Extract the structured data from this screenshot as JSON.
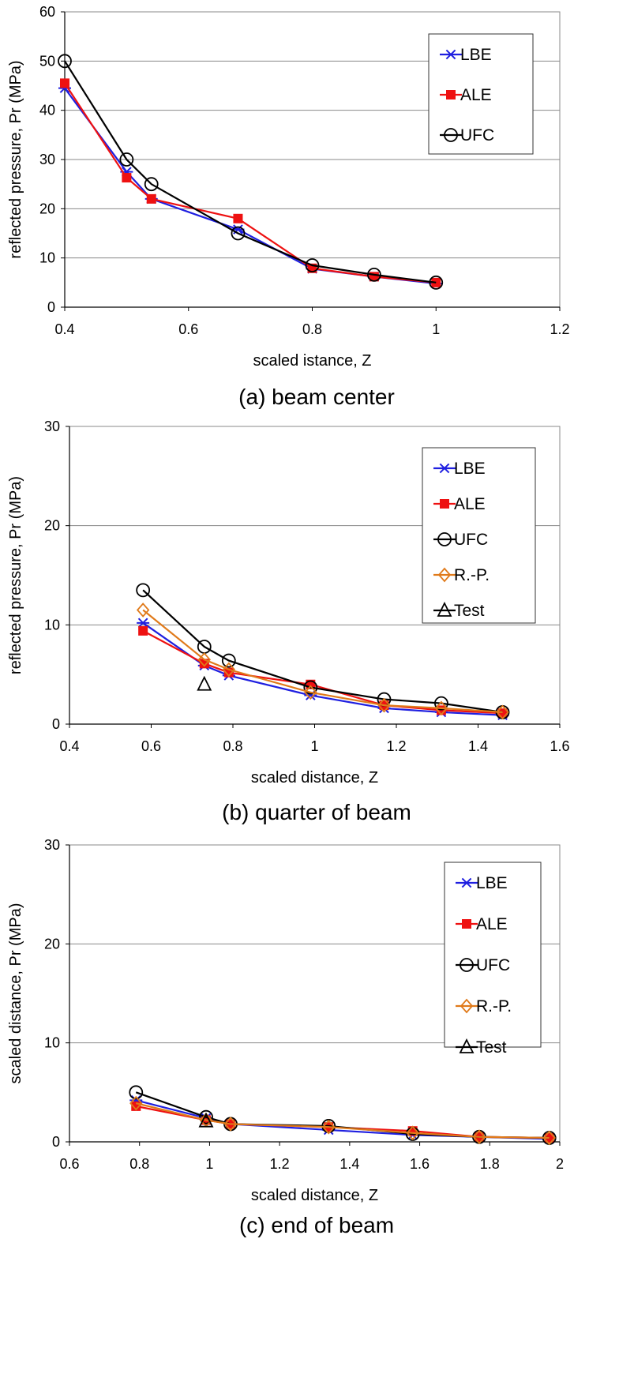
{
  "colors": {
    "LBE": "#1f1fe0",
    "ALE": "#ee1111",
    "UFC": "#000000",
    "RP": "#e07a1a",
    "Test": "#000000",
    "grid": "#888888",
    "axis": "#000000"
  },
  "chart_data": [
    {
      "type": "line",
      "caption": "(a) beam center",
      "xlabel": "scaled istance, Z",
      "ylabel": "reflected pressure, Pr (MPa)",
      "xlim": [
        0.4,
        1.2
      ],
      "ylim": [
        0,
        60
      ],
      "xticks": [
        0.4,
        0.6,
        0.8,
        1.0,
        1.2
      ],
      "xtick_labels": [
        "0.4",
        "0.6",
        "0.8",
        "1",
        "1.2"
      ],
      "yticks": [
        0,
        10,
        20,
        30,
        40,
        50,
        60
      ],
      "ytick_labels": [
        "0",
        "10",
        "20",
        "30",
        "40",
        "50",
        "60"
      ],
      "grid": "horizontal",
      "legend_position": "top-right",
      "series": [
        {
          "name": "LBE",
          "marker": "asterisk",
          "x": [
            0.4,
            0.5,
            0.54,
            0.68,
            0.8,
            0.9,
            1.0
          ],
          "y": [
            44.5,
            27.5,
            22.0,
            15.8,
            7.8,
            6.2,
            4.8
          ]
        },
        {
          "name": "ALE",
          "marker": "square",
          "x": [
            0.4,
            0.5,
            0.54,
            0.68,
            0.8,
            0.9,
            1.0
          ],
          "y": [
            45.5,
            26.3,
            22.0,
            18.0,
            7.9,
            6.2,
            5.0
          ]
        },
        {
          "name": "UFC",
          "marker": "circle",
          "x": [
            0.4,
            0.5,
            0.54,
            0.68,
            0.8,
            0.9,
            1.0
          ],
          "y": [
            50.0,
            30.0,
            25.0,
            15.0,
            8.5,
            6.6,
            5.0
          ]
        }
      ]
    },
    {
      "type": "line",
      "caption": "(b) quarter of beam",
      "xlabel": "scaled distance, Z",
      "ylabel": "reflected pressure, Pr (MPa)",
      "xlim": [
        0.4,
        1.6
      ],
      "ylim": [
        0,
        30
      ],
      "xticks": [
        0.4,
        0.6,
        0.8,
        1.0,
        1.2,
        1.4,
        1.6
      ],
      "xtick_labels": [
        "0.4",
        "0.6",
        "0.8",
        "1",
        "1.2",
        "1.4",
        "1.6"
      ],
      "yticks": [
        0,
        10,
        20,
        30
      ],
      "ytick_labels": [
        "0",
        "10",
        "20",
        "30"
      ],
      "grid": "horizontal",
      "legend_position": "top-right",
      "series": [
        {
          "name": "LBE",
          "marker": "asterisk",
          "x": [
            0.58,
            0.73,
            0.79,
            0.99,
            1.17,
            1.31,
            1.46
          ],
          "y": [
            10.2,
            5.9,
            4.9,
            2.9,
            1.6,
            1.2,
            0.9
          ]
        },
        {
          "name": "ALE",
          "marker": "square",
          "x": [
            0.58,
            0.73,
            0.79,
            0.99,
            1.17,
            1.31,
            1.46
          ],
          "y": [
            9.4,
            6.1,
            5.2,
            4.0,
            1.9,
            1.4,
            1.1
          ]
        },
        {
          "name": "UFC",
          "marker": "circle",
          "x": [
            0.58,
            0.73,
            0.79,
            0.99,
            1.17,
            1.31,
            1.46
          ],
          "y": [
            13.5,
            7.8,
            6.4,
            3.7,
            2.5,
            2.1,
            1.2
          ]
        },
        {
          "name": "R.-P.",
          "marker": "diamond",
          "x": [
            0.58,
            0.73,
            0.79,
            0.99,
            1.17,
            1.31,
            1.46
          ],
          "y": [
            11.5,
            6.5,
            5.5,
            3.2,
            1.9,
            1.6,
            1.2
          ]
        },
        {
          "name": "Test",
          "marker": "triangle",
          "x": [
            0.73
          ],
          "y": [
            4.0
          ]
        }
      ]
    },
    {
      "type": "line",
      "caption": "(c) end of beam",
      "xlabel": "scaled distance, Z",
      "ylabel": "scaled distance, Pr (MPa)",
      "xlim": [
        0.6,
        2.0
      ],
      "ylim": [
        0,
        30
      ],
      "xticks": [
        0.6,
        0.8,
        1.0,
        1.2,
        1.4,
        1.6,
        1.8,
        2.0
      ],
      "xtick_labels": [
        "0.6",
        "0.8",
        "1",
        "1.2",
        "1.4",
        "1.6",
        "1.8",
        "2"
      ],
      "yticks": [
        0,
        10,
        20,
        30
      ],
      "ytick_labels": [
        "0",
        "10",
        "20",
        "30"
      ],
      "grid": "horizontal",
      "legend_position": "top-right",
      "series": [
        {
          "name": "LBE",
          "marker": "asterisk",
          "x": [
            0.79,
            0.99,
            1.06,
            1.34,
            1.58,
            1.77,
            1.97
          ],
          "y": [
            4.2,
            2.4,
            1.8,
            1.2,
            0.7,
            0.5,
            0.3
          ]
        },
        {
          "name": "ALE",
          "marker": "square",
          "x": [
            0.79,
            0.99,
            1.06,
            1.34,
            1.58,
            1.77,
            1.97
          ],
          "y": [
            3.6,
            2.2,
            1.8,
            1.5,
            1.1,
            0.5,
            0.4
          ]
        },
        {
          "name": "UFC",
          "marker": "circle",
          "x": [
            0.79,
            0.99,
            1.06,
            1.34,
            1.58,
            1.77,
            1.97
          ],
          "y": [
            5.0,
            2.5,
            1.8,
            1.6,
            0.8,
            0.5,
            0.4
          ]
        },
        {
          "name": "R.-P.",
          "marker": "diamond",
          "x": [
            0.79,
            0.99,
            1.06,
            1.34,
            1.58,
            1.77,
            1.97
          ],
          "y": [
            3.9,
            2.2,
            1.8,
            1.5,
            0.9,
            0.5,
            0.4
          ]
        },
        {
          "name": "Test",
          "marker": "triangle",
          "x": [
            0.99
          ],
          "y": [
            2.1
          ]
        }
      ]
    }
  ]
}
